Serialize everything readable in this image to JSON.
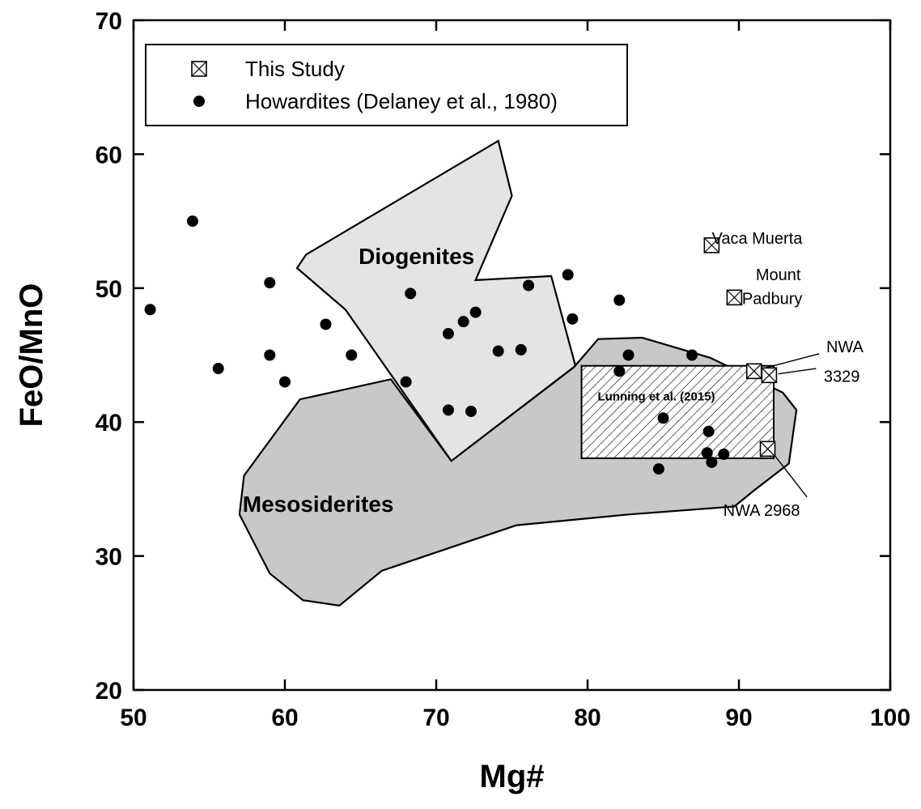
{
  "chart_data": {
    "type": "scatter",
    "title": "",
    "xlabel": "Mg#",
    "ylabel": "FeO/MnO",
    "xlim": [
      50,
      100
    ],
    "ylim": [
      20,
      70
    ],
    "x_ticks": [
      50,
      60,
      70,
      80,
      90,
      100
    ],
    "y_ticks": [
      20,
      30,
      40,
      50,
      60,
      70
    ],
    "grid": false,
    "legend_position": "top-left",
    "legend": [
      {
        "marker": "boxed-x-square",
        "label": "This Study"
      },
      {
        "marker": "filled-circle",
        "label": "Howardites (Delaney et al., 1980)"
      }
    ],
    "series": [
      {
        "name": "This Study",
        "marker": "boxed-x-square",
        "points": [
          {
            "x": 88.2,
            "y": 53.2,
            "label": "Vaca Muerta"
          },
          {
            "x": 89.7,
            "y": 49.3,
            "label": "Mount Padbury"
          },
          {
            "x": 91.0,
            "y": 43.8
          },
          {
            "x": 92.0,
            "y": 43.5
          },
          {
            "x": 91.9,
            "y": 38.0
          }
        ]
      },
      {
        "name": "Howardites (Delaney et al., 1980)",
        "marker": "filled-circle",
        "points": [
          {
            "x": 51.1,
            "y": 48.4
          },
          {
            "x": 53.9,
            "y": 55.0
          },
          {
            "x": 55.6,
            "y": 44.0
          },
          {
            "x": 59.0,
            "y": 50.4
          },
          {
            "x": 59.0,
            "y": 45.0
          },
          {
            "x": 60.0,
            "y": 43.0
          },
          {
            "x": 62.7,
            "y": 47.3
          },
          {
            "x": 64.4,
            "y": 45.0
          },
          {
            "x": 68.0,
            "y": 43.0
          },
          {
            "x": 68.3,
            "y": 49.6
          },
          {
            "x": 70.8,
            "y": 46.6
          },
          {
            "x": 70.8,
            "y": 40.9
          },
          {
            "x": 71.8,
            "y": 47.5
          },
          {
            "x": 72.3,
            "y": 40.8
          },
          {
            "x": 72.6,
            "y": 48.2
          },
          {
            "x": 74.1,
            "y": 45.3
          },
          {
            "x": 75.6,
            "y": 45.4
          },
          {
            "x": 76.1,
            "y": 50.2
          },
          {
            "x": 78.7,
            "y": 51.0
          },
          {
            "x": 79.0,
            "y": 47.7
          },
          {
            "x": 82.1,
            "y": 49.1
          },
          {
            "x": 82.1,
            "y": 43.8
          },
          {
            "x": 82.7,
            "y": 45.0
          },
          {
            "x": 84.7,
            "y": 36.5
          },
          {
            "x": 85.0,
            "y": 40.3
          },
          {
            "x": 86.9,
            "y": 45.0
          },
          {
            "x": 88.0,
            "y": 39.3
          },
          {
            "x": 87.9,
            "y": 37.7
          },
          {
            "x": 88.2,
            "y": 37.0
          },
          {
            "x": 89.0,
            "y": 37.6
          }
        ]
      }
    ],
    "regions": [
      {
        "name": "Diogenites",
        "fill": "#e4e4e4",
        "label_at": [
          68.7,
          51.8
        ],
        "polygon": [
          [
            61.4,
            52.5
          ],
          [
            74.1,
            61.0
          ],
          [
            75.0,
            56.9
          ],
          [
            72.6,
            50.6
          ],
          [
            77.6,
            50.9
          ],
          [
            79.2,
            44.2
          ],
          [
            71.0,
            37.1
          ],
          [
            64.0,
            48.4
          ],
          [
            60.8,
            51.5
          ]
        ]
      },
      {
        "name": "Mesosiderites",
        "fill": "#c8c8c8",
        "label_at": [
          62.2,
          33.3
        ],
        "polygon": [
          [
            57.3,
            36.0
          ],
          [
            61.0,
            41.7
          ],
          [
            67.0,
            43.2
          ],
          [
            71.0,
            37.1
          ],
          [
            79.1,
            44.1
          ],
          [
            80.7,
            46.2
          ],
          [
            83.6,
            46.3
          ],
          [
            88.1,
            44.8
          ],
          [
            92.9,
            42.2
          ],
          [
            93.8,
            40.9
          ],
          [
            93.3,
            36.9
          ],
          [
            91.0,
            34.9
          ],
          [
            89.7,
            33.7
          ],
          [
            82.7,
            33.1
          ],
          [
            75.3,
            32.3
          ],
          [
            66.4,
            28.9
          ],
          [
            63.6,
            26.3
          ],
          [
            61.2,
            26.7
          ],
          [
            59.0,
            28.7
          ],
          [
            57.0,
            33.1
          ]
        ]
      }
    ],
    "boxes": [
      {
        "name": "Lunning et al. (2015)",
        "x_range": [
          79.6,
          92.3
        ],
        "y_range": [
          37.3,
          44.2
        ],
        "pattern": "diagonal-hatch"
      }
    ],
    "annotations": [
      {
        "text": "Vaca Muerta",
        "x": 91.2,
        "y": 53.3
      },
      {
        "text": "Mount",
        "x": 92.6,
        "y": 50.6
      },
      {
        "text": "Padbury",
        "x": 92.2,
        "y": 48.8
      },
      {
        "text": "NWA",
        "x": 97.0,
        "y": 45.2
      },
      {
        "text": "3329",
        "x": 96.8,
        "y": 43.0
      },
      {
        "text": "NWA 2968",
        "x": 91.5,
        "y": 33.0
      }
    ]
  }
}
